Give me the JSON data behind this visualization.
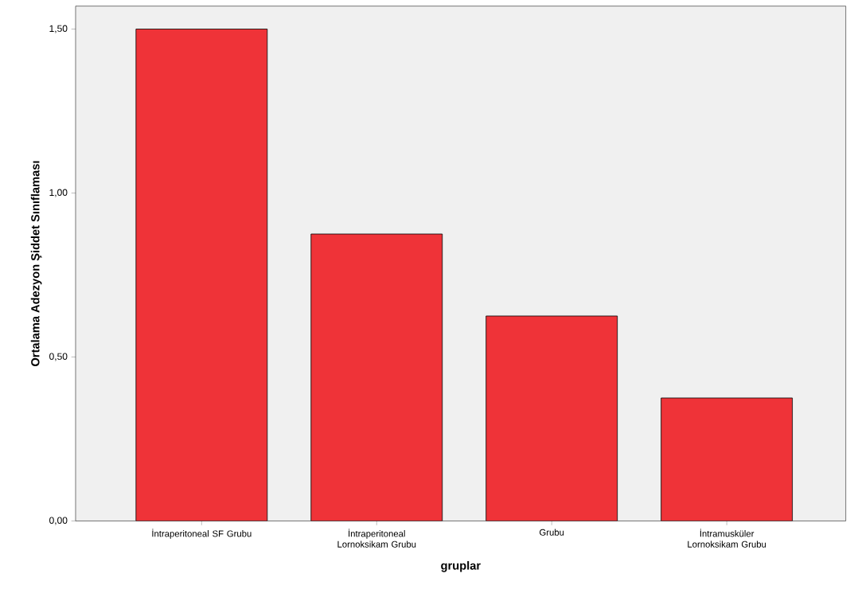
{
  "chart_data": {
    "type": "bar",
    "xlabel": "gruplar",
    "ylabel": "Ortalama Adezyon Şiddet Sınıflaması",
    "categories": [
      "İntraperitoneal SF Grubu",
      "İntraperitoneal Lornoksikam Grubu",
      "Grubu",
      "İntramusküler Lornoksikam Grubu"
    ],
    "values": [
      1.5,
      0.875,
      0.625,
      0.375
    ],
    "color": "#ef3338",
    "ylim": [
      0,
      1.57
    ],
    "yticks": [
      {
        "value": 0,
        "label": "0,00"
      },
      {
        "value": 0.5,
        "label": "0,50"
      },
      {
        "value": 1.0,
        "label": "1,00"
      },
      {
        "value": 1.5,
        "label": "1,50"
      }
    ],
    "grid": false
  }
}
